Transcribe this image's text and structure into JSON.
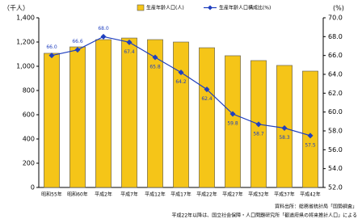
{
  "chart_data": {
    "type": "bar-line",
    "y_label": "（千人）",
    "y2_label": "(%)",
    "categories": [
      "昭和55年",
      "昭和60年",
      "平成2年",
      "平成7年",
      "平成12年",
      "平成17年",
      "平成22年",
      "平成27年",
      "平成32年",
      "平成37年",
      "平成42年"
    ],
    "series": [
      {
        "name": "生産年齢人口(人)",
        "type": "bar",
        "color": "#f5c518",
        "values": [
          1107,
          1160,
          1220,
          1233,
          1220,
          1200,
          1153,
          1087,
          1047,
          1007,
          960
        ]
      },
      {
        "name": "生産年齢人口構成比(%)",
        "type": "line",
        "axis": "y2",
        "color": "#1f3fbf",
        "values": [
          66.0,
          66.6,
          68.0,
          67.4,
          65.8,
          64.2,
          62.4,
          59.8,
          58.7,
          58.3,
          57.5
        ],
        "value_labels": [
          "66.0",
          "66.6",
          "68.0",
          "67.4",
          "65.8",
          "64.2",
          "62.4",
          "59.8",
          "58.7",
          "58.3",
          "57.5"
        ]
      }
    ],
    "ylim": [
      0,
      1400
    ],
    "yticks": [
      0,
      200,
      400,
      600,
      800,
      {
        "value": 1000,
        "label": "1,000"
      },
      {
        "value": 1200,
        "label": "1,200"
      },
      {
        "value": 1400,
        "label": "1,400"
      }
    ],
    "y2lim": [
      52,
      70
    ],
    "y2ticks": [
      {
        "value": 52,
        "label": "52.0"
      },
      {
        "value": 54,
        "label": "54.0"
      },
      {
        "value": 56,
        "label": "56.0"
      },
      {
        "value": 58,
        "label": "58.0"
      },
      {
        "value": 60,
        "label": "60.0"
      },
      {
        "value": 62,
        "label": "62.0"
      },
      {
        "value": 64,
        "label": "64.0"
      },
      {
        "value": 66,
        "label": "66.0"
      },
      {
        "value": 68,
        "label": "68.0"
      },
      {
        "value": 70,
        "label": "70.0"
      }
    ],
    "notes": [
      "資料出所：総務省統計局「国勢調査」",
      "平成22年以降は、国立社会保障・人口問題研究所「都道府県の将来推計人口」による"
    ]
  }
}
